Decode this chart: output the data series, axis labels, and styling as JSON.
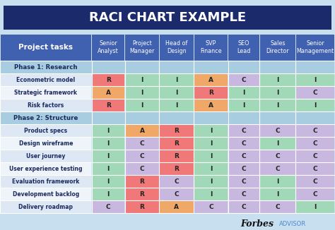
{
  "title": "RACI CHART EXAMPLE",
  "title_bg": "#1b2a6b",
  "title_color": "#ffffff",
  "col_headers": [
    "Project tasks",
    "Senior\nAnalyst",
    "Project\nManager",
    "Head of\nDesign",
    "SVP\nFinance",
    "SEO\nLead",
    "Sales\nDirector",
    "Senior\nManagement"
  ],
  "header_bg": "#4060b0",
  "header_color": "#ffffff",
  "rows": [
    {
      "label": "Phase 1: Research",
      "cells": [
        "",
        "",
        "",
        "",
        "",
        "",
        ""
      ],
      "is_phase": true
    },
    {
      "label": "Econometric model",
      "cells": [
        "R",
        "I",
        "I",
        "A",
        "C",
        "I",
        "I"
      ],
      "is_phase": false
    },
    {
      "label": "Strategic framework",
      "cells": [
        "A",
        "I",
        "I",
        "R",
        "I",
        "I",
        "C"
      ],
      "is_phase": false
    },
    {
      "label": "Risk factors",
      "cells": [
        "R",
        "I",
        "I",
        "A",
        "I",
        "I",
        "I"
      ],
      "is_phase": false
    },
    {
      "label": "Phase 2: Structure",
      "cells": [
        "",
        "",
        "",
        "",
        "",
        "",
        ""
      ],
      "is_phase": true
    },
    {
      "label": "Product specs",
      "cells": [
        "I",
        "A",
        "R",
        "I",
        "C",
        "C",
        "C"
      ],
      "is_phase": false
    },
    {
      "label": "Design wireframe",
      "cells": [
        "I",
        "C",
        "R",
        "I",
        "C",
        "I",
        "C"
      ],
      "is_phase": false
    },
    {
      "label": "User journey",
      "cells": [
        "I",
        "C",
        "R",
        "I",
        "C",
        "C",
        "C"
      ],
      "is_phase": false
    },
    {
      "label": "User experience testing",
      "cells": [
        "I",
        "C",
        "R",
        "I",
        "C",
        "C",
        "C"
      ],
      "is_phase": false
    },
    {
      "label": "Evaluation framework",
      "cells": [
        "I",
        "R",
        "C",
        "I",
        "C",
        "I",
        "C"
      ],
      "is_phase": false
    },
    {
      "label": "Development backlog",
      "cells": [
        "I",
        "R",
        "C",
        "I",
        "C",
        "I",
        "C"
      ],
      "is_phase": false
    },
    {
      "label": "Delivery roadmap",
      "cells": [
        "C",
        "R",
        "A",
        "C",
        "C",
        "C",
        "I"
      ],
      "is_phase": false
    }
  ],
  "cell_colors": {
    "R": "#f07878",
    "A": "#f0a868",
    "C": "#c8b8e0",
    "I": "#a0d8b8",
    "": "#cce0f0"
  },
  "phase_bg": "#a8cce0",
  "phase_label_color": "#1a2a5e",
  "row_bg_a": "#dde8f4",
  "row_bg_b": "#eef4fa",
  "label_color": "#1a2a5e",
  "grid_bg": "#c8dff0",
  "forbes_color": "#111111",
  "advisor_color": "#4a88cc"
}
